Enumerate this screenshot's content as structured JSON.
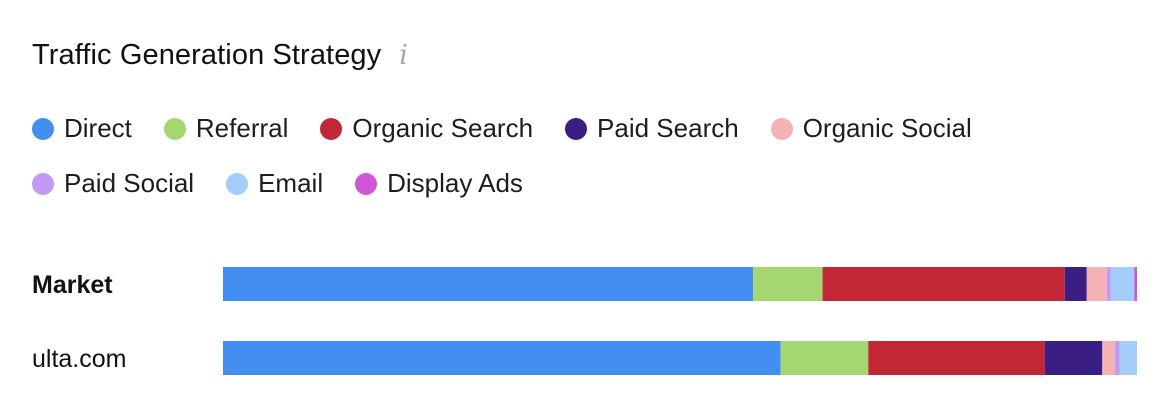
{
  "header": {
    "title": "Traffic Generation Strategy",
    "info_glyph": "i"
  },
  "chart_data": {
    "type": "bar",
    "orientation": "horizontal",
    "stacked": true,
    "normalized": true,
    "categories": [
      "Market",
      "ulta.com"
    ],
    "category_bold": [
      true,
      false
    ],
    "series": [
      {
        "name": "Direct",
        "color": "#428ef1",
        "values": [
          58.0,
          61.0
        ]
      },
      {
        "name": "Referral",
        "color": "#a6d672",
        "values": [
          7.6,
          9.6
        ]
      },
      {
        "name": "Organic Search",
        "color": "#c12734",
        "values": [
          26.5,
          19.3
        ]
      },
      {
        "name": "Paid Search",
        "color": "#3b1e83",
        "values": [
          2.4,
          6.3
        ]
      },
      {
        "name": "Organic Social",
        "color": "#f4b2b4",
        "values": [
          2.2,
          1.4
        ]
      },
      {
        "name": "Paid Social",
        "color": "#c19af3",
        "values": [
          0.4,
          0.5
        ]
      },
      {
        "name": "Email",
        "color": "#a4cdf9",
        "values": [
          2.6,
          1.9
        ]
      },
      {
        "name": "Display Ads",
        "color": "#d056d6",
        "values": [
          0.3,
          0.0
        ]
      }
    ],
    "legend_position": "top",
    "grid": false
  }
}
